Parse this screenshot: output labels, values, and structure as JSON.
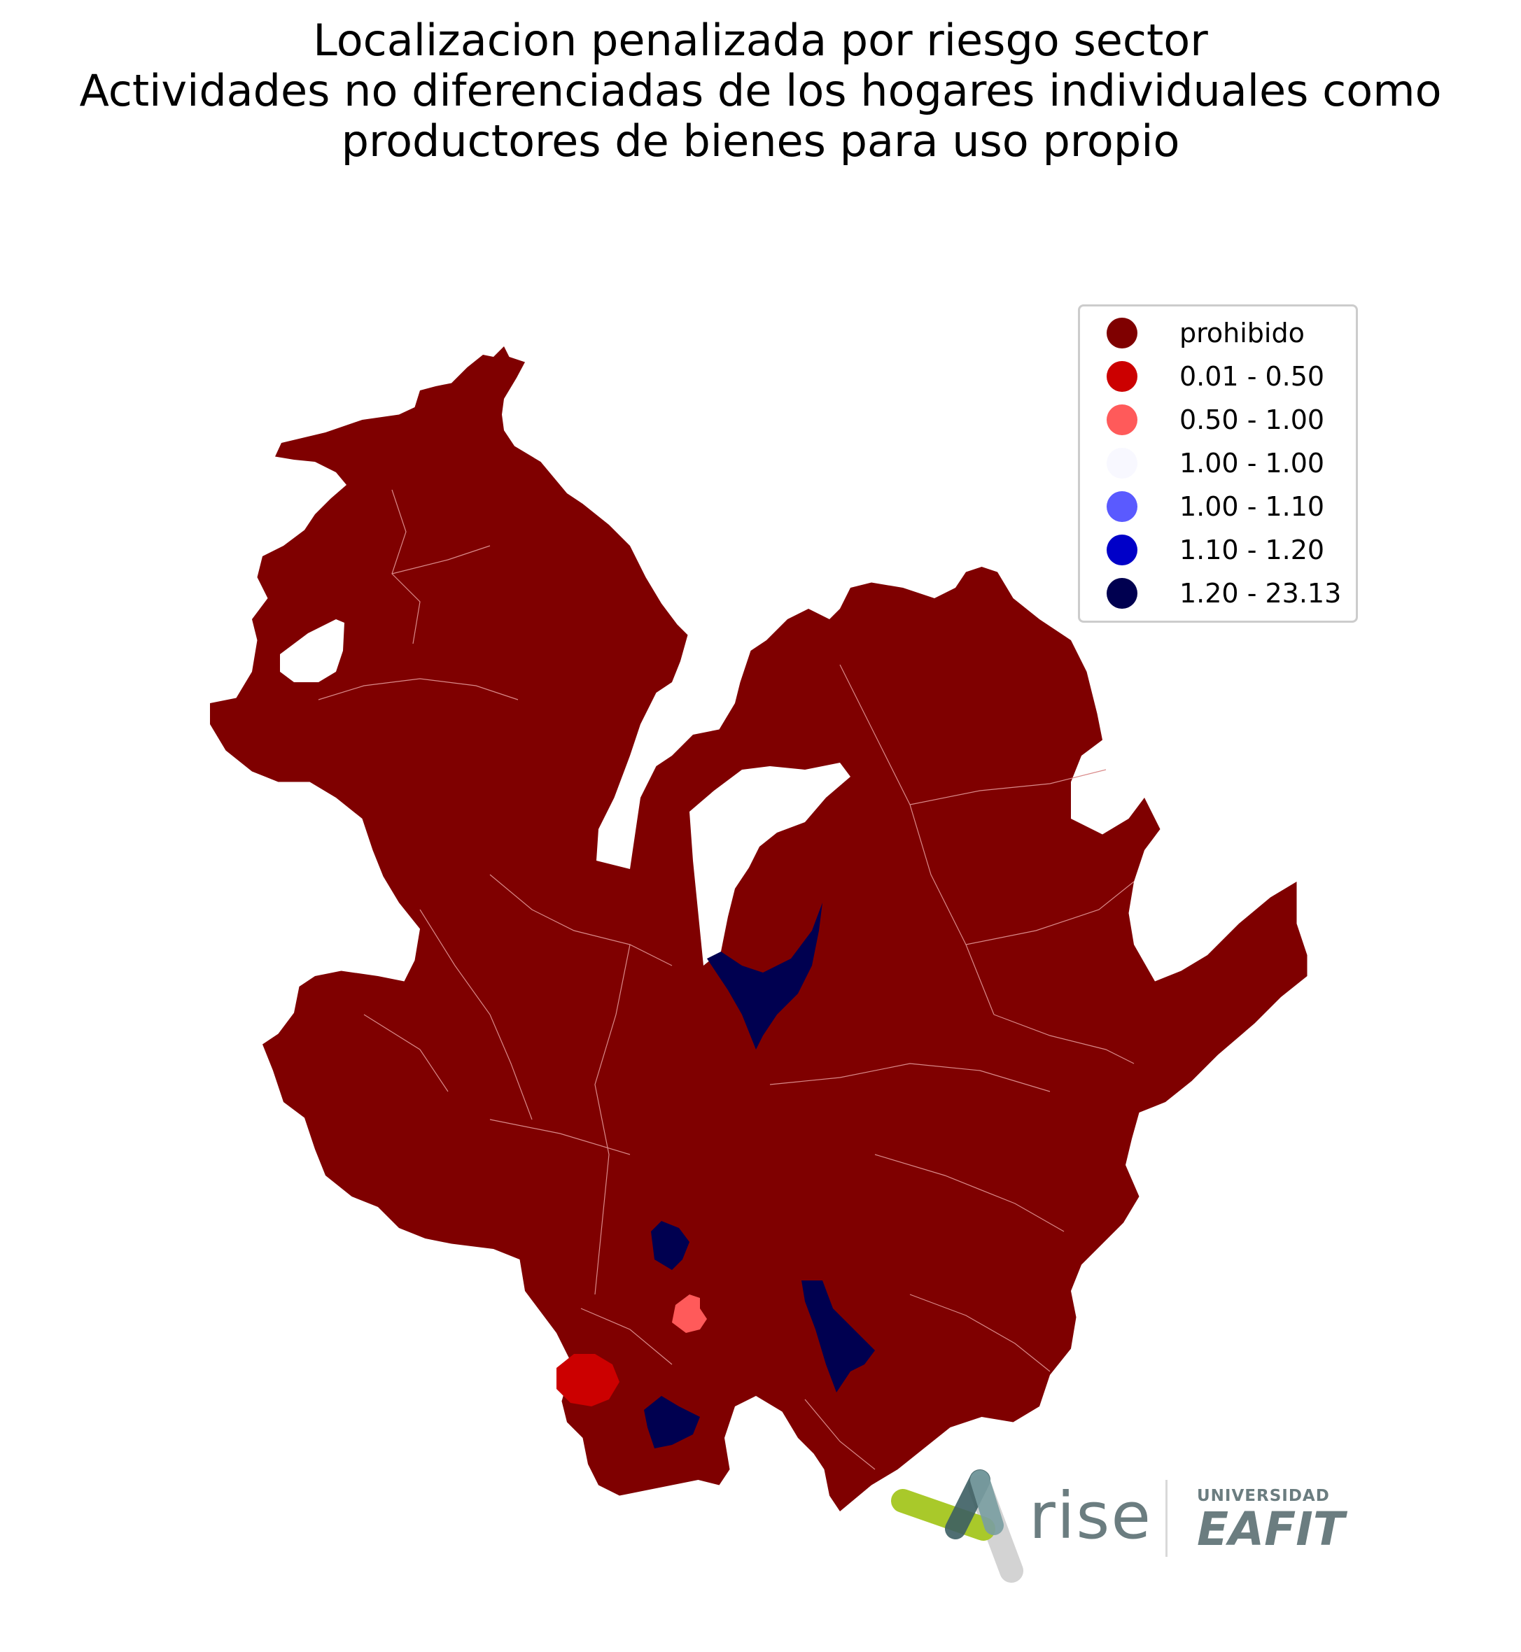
{
  "title": {
    "line1": "Localizacion penalizada por riesgo sector",
    "line2": "Actividades no diferenciadas de los hogares individuales como",
    "line3": "productores de bienes para uso propio"
  },
  "legend": {
    "items": [
      {
        "label": "prohibido",
        "color": "#7f0000"
      },
      {
        "label": "0.01 - 0.50",
        "color": "#cc0000"
      },
      {
        "label": "0.50 - 1.00",
        "color": "#ff5a5a"
      },
      {
        "label": "1.00 - 1.00",
        "color": "#f8f8ff"
      },
      {
        "label": "1.00 - 1.10",
        "color": "#5a5aff"
      },
      {
        "label": "1.10 - 1.20",
        "color": "#0000c8"
      },
      {
        "label": "1.20 - 23.13",
        "color": "#000050"
      }
    ]
  },
  "logos": {
    "rise": "rise",
    "university_top": "UNIVERSIDAD",
    "university_name": "EAFIT"
  }
}
